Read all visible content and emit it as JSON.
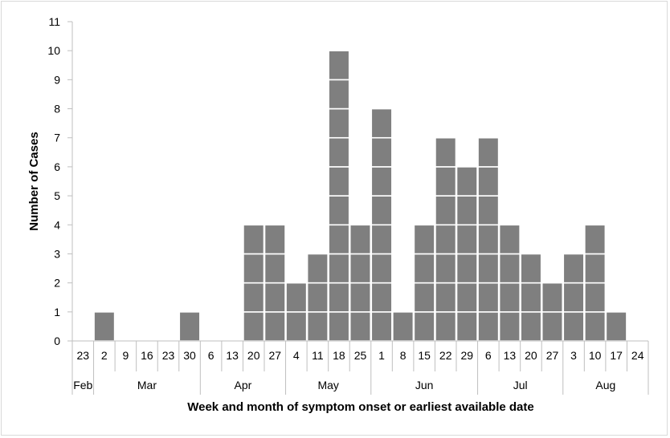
{
  "chart_data": {
    "type": "bar",
    "style": "stacked unit boxes (one box per case)",
    "bar_color": "#7f7f7f",
    "box_border_color": "#ffffff",
    "categories": [
      {
        "week": "23",
        "month": "Feb"
      },
      {
        "week": "2",
        "month": "Mar"
      },
      {
        "week": "9",
        "month": "Mar"
      },
      {
        "week": "16",
        "month": "Mar"
      },
      {
        "week": "23",
        "month": "Mar"
      },
      {
        "week": "30",
        "month": "Mar"
      },
      {
        "week": "6",
        "month": "Apr"
      },
      {
        "week": "13",
        "month": "Apr"
      },
      {
        "week": "20",
        "month": "Apr"
      },
      {
        "week": "27",
        "month": "Apr"
      },
      {
        "week": "4",
        "month": "May"
      },
      {
        "week": "11",
        "month": "May"
      },
      {
        "week": "18",
        "month": "May"
      },
      {
        "week": "25",
        "month": "May"
      },
      {
        "week": "1",
        "month": "Jun"
      },
      {
        "week": "8",
        "month": "Jun"
      },
      {
        "week": "15",
        "month": "Jun"
      },
      {
        "week": "22",
        "month": "Jun"
      },
      {
        "week": "29",
        "month": "Jun"
      },
      {
        "week": "6",
        "month": "Jul"
      },
      {
        "week": "13",
        "month": "Jul"
      },
      {
        "week": "20",
        "month": "Jul"
      },
      {
        "week": "27",
        "month": "Jul"
      },
      {
        "week": "3",
        "month": "Aug"
      },
      {
        "week": "10",
        "month": "Aug"
      },
      {
        "week": "17",
        "month": "Aug"
      },
      {
        "week": "24",
        "month": "Aug"
      }
    ],
    "values": [
      0,
      1,
      0,
      0,
      0,
      1,
      0,
      0,
      4,
      4,
      2,
      3,
      10,
      4,
      8,
      1,
      4,
      7,
      6,
      7,
      4,
      3,
      2,
      3,
      4,
      1,
      0
    ],
    "months": [
      {
        "label": "Feb",
        "span": 1
      },
      {
        "label": "Mar",
        "span": 5
      },
      {
        "label": "Apr",
        "span": 4
      },
      {
        "label": "May",
        "span": 4
      },
      {
        "label": "Jun",
        "span": 5
      },
      {
        "label": "Jul",
        "span": 4
      },
      {
        "label": "Aug",
        "span": 4
      }
    ],
    "yticks": [
      0,
      1,
      2,
      3,
      4,
      5,
      6,
      7,
      8,
      9,
      10,
      11
    ],
    "ylim": [
      0,
      11
    ],
    "ylabel": "Number of Cases",
    "xlabel": "Week and month of symptom onset or earliest available date",
    "grid": false
  }
}
